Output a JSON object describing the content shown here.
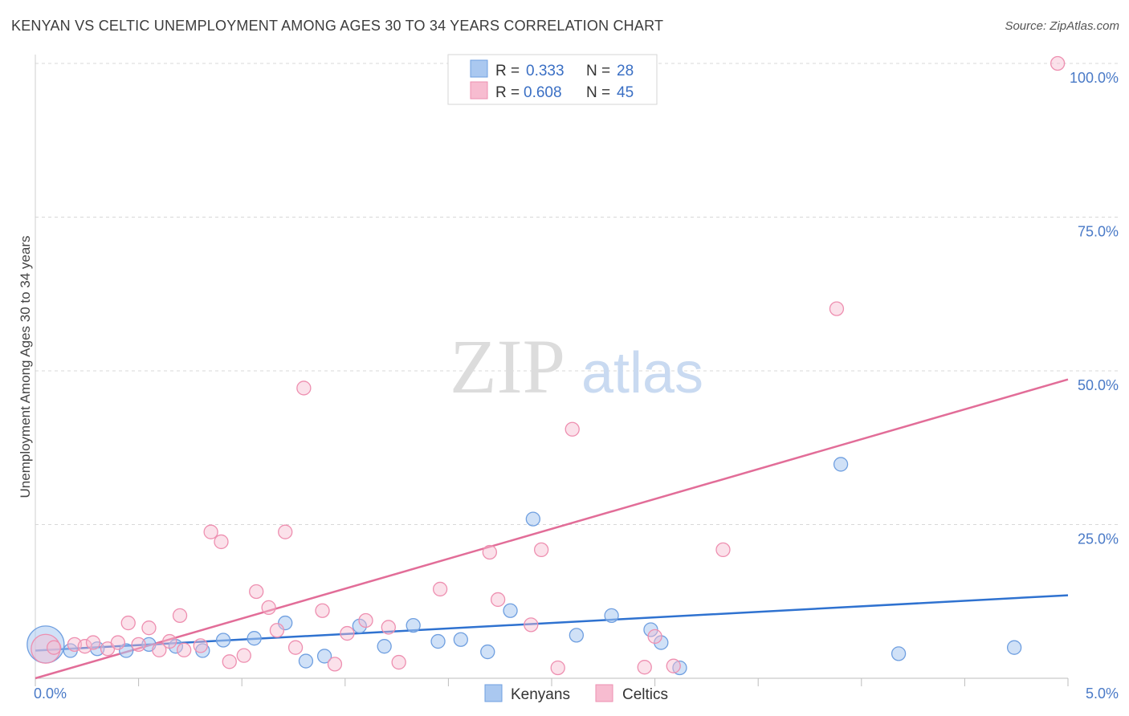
{
  "header": {
    "title": "KENYAN VS CELTIC UNEMPLOYMENT AMONG AGES 30 TO 34 YEARS CORRELATION CHART",
    "source": "Source: ZipAtlas.com"
  },
  "watermark": {
    "zip": "ZIP",
    "atlas": "atlas"
  },
  "colors": {
    "kenyans_fill": "#aac8f0",
    "kenyans_stroke": "#6f9fe0",
    "kenyans_line": "#2f72d0",
    "celtics_fill": "#f7bcd0",
    "celtics_stroke": "#ee8fb0",
    "celtics_line": "#e26d98",
    "grid": "#d8d8d8",
    "tick_text": "#4a7ac7"
  },
  "chart_data": {
    "type": "scatter",
    "title": "KENYAN VS CELTIC UNEMPLOYMENT AMONG AGES 30 TO 34 YEARS CORRELATION CHART",
    "xlabel": "",
    "ylabel": "Unemployment Among Ages 30 to 34 years",
    "xlim": [
      0,
      5
    ],
    "ylim": [
      0,
      100
    ],
    "x_tick_labels": [
      "0.0%",
      "5.0%"
    ],
    "y_ticks": [
      25,
      50,
      75,
      100
    ],
    "y_tick_labels": [
      "25.0%",
      "50.0%",
      "75.0%",
      "100.0%"
    ],
    "legend": [
      {
        "r_label": "R = ",
        "r_value": "0.333",
        "n_label": "N = ",
        "n_value": "28"
      },
      {
        "r_label": "R = ",
        "r_value": "0.608",
        "n_label": "N = ",
        "n_value": "45"
      }
    ],
    "series": [
      {
        "name": "Kenyans",
        "trend": [
          [
            0.0,
            4.5
          ],
          [
            5.0,
            13.5
          ]
        ],
        "points": [
          [
            0.05,
            5.5,
            3
          ],
          [
            0.17,
            4.5,
            1
          ],
          [
            0.3,
            4.8,
            1
          ],
          [
            0.44,
            4.5,
            1
          ],
          [
            0.55,
            5.5,
            1
          ],
          [
            0.68,
            5.2,
            1
          ],
          [
            0.81,
            4.5,
            1
          ],
          [
            0.91,
            6.2,
            1
          ],
          [
            1.06,
            6.5,
            1
          ],
          [
            1.21,
            9.0,
            1
          ],
          [
            1.31,
            2.8,
            1
          ],
          [
            1.4,
            3.6,
            1
          ],
          [
            1.57,
            8.5,
            1
          ],
          [
            1.69,
            5.2,
            1
          ],
          [
            1.83,
            8.6,
            1
          ],
          [
            1.95,
            6.0,
            1
          ],
          [
            2.06,
            6.3,
            1
          ],
          [
            2.19,
            4.3,
            1
          ],
          [
            2.3,
            11.0,
            1
          ],
          [
            2.41,
            25.9,
            1
          ],
          [
            2.62,
            7.0,
            1
          ],
          [
            2.79,
            10.2,
            1
          ],
          [
            2.98,
            7.9,
            1
          ],
          [
            3.03,
            5.8,
            1
          ],
          [
            3.12,
            1.7,
            1
          ],
          [
            3.9,
            34.8,
            1
          ],
          [
            4.18,
            4.0,
            1
          ],
          [
            4.74,
            5.0,
            1
          ]
        ]
      },
      {
        "name": "Celtics",
        "trend": [
          [
            0.0,
            0.0
          ],
          [
            5.0,
            48.6
          ]
        ],
        "points": [
          [
            0.05,
            4.8,
            2
          ],
          [
            0.09,
            5.0,
            1
          ],
          [
            0.19,
            5.5,
            1
          ],
          [
            0.24,
            5.2,
            1
          ],
          [
            0.28,
            5.8,
            1
          ],
          [
            0.35,
            4.8,
            1
          ],
          [
            0.4,
            5.8,
            1
          ],
          [
            0.45,
            9.0,
            1
          ],
          [
            0.5,
            5.5,
            1
          ],
          [
            0.55,
            8.2,
            1
          ],
          [
            0.6,
            4.6,
            1
          ],
          [
            0.65,
            6.0,
            1
          ],
          [
            0.7,
            10.2,
            1
          ],
          [
            0.72,
            4.6,
            1
          ],
          [
            0.8,
            5.3,
            1
          ],
          [
            0.85,
            23.8,
            1
          ],
          [
            0.9,
            22.2,
            1
          ],
          [
            0.94,
            2.7,
            1
          ],
          [
            1.01,
            3.7,
            1
          ],
          [
            1.07,
            14.1,
            1
          ],
          [
            1.13,
            11.5,
            1
          ],
          [
            1.17,
            7.8,
            1
          ],
          [
            1.21,
            23.8,
            1
          ],
          [
            1.26,
            5.0,
            1
          ],
          [
            1.3,
            47.2,
            1
          ],
          [
            1.39,
            11.0,
            1
          ],
          [
            1.45,
            2.3,
            1
          ],
          [
            1.51,
            7.3,
            1
          ],
          [
            1.6,
            9.4,
            1
          ],
          [
            1.71,
            8.3,
            1
          ],
          [
            1.76,
            2.6,
            1
          ],
          [
            1.96,
            14.5,
            1
          ],
          [
            2.2,
            20.5,
            1
          ],
          [
            2.24,
            12.8,
            1
          ],
          [
            2.4,
            8.7,
            1
          ],
          [
            2.45,
            20.9,
            1
          ],
          [
            2.53,
            1.7,
            1
          ],
          [
            2.6,
            40.5,
            1
          ],
          [
            2.95,
            1.8,
            1
          ],
          [
            3.0,
            6.8,
            1
          ],
          [
            3.09,
            2.0,
            1
          ],
          [
            3.33,
            20.9,
            1
          ],
          [
            3.88,
            60.1,
            1
          ],
          [
            4.95,
            100.0,
            1
          ]
        ]
      }
    ]
  }
}
